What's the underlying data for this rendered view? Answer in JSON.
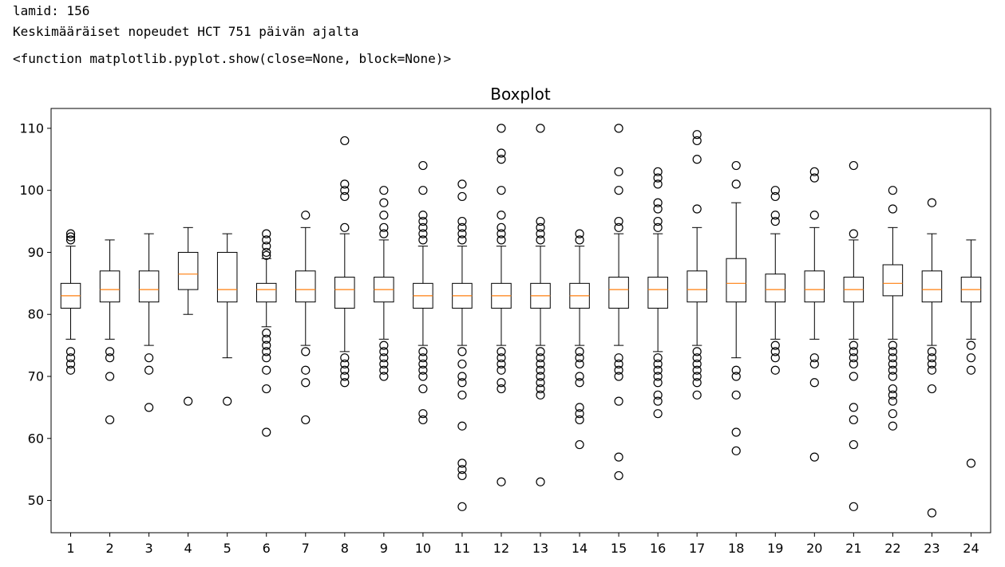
{
  "output_lines": [
    "lamid: 156",
    "Keskimääräiset nopeudet HCT 751 päivän ajalta",
    "<function matplotlib.pyplot.show(close=None, block=None)>"
  ],
  "chart_data": {
    "type": "boxplot",
    "title": "Boxplot",
    "xlabel": "",
    "ylabel": "",
    "categories": [
      "1",
      "2",
      "3",
      "4",
      "5",
      "6",
      "7",
      "8",
      "9",
      "10",
      "11",
      "12",
      "13",
      "14",
      "15",
      "16",
      "17",
      "18",
      "19",
      "20",
      "21",
      "22",
      "23",
      "24"
    ],
    "y_ticks": [
      50,
      60,
      70,
      80,
      90,
      100,
      110
    ],
    "ylim": [
      44.8,
      113.2
    ],
    "grid": false,
    "legend": "none",
    "colors": {
      "box": "#000000",
      "median": "#ff7f0e",
      "flier": "#000000",
      "background": "#ffffff"
    },
    "boxes": [
      {
        "q1": 81,
        "median": 83,
        "q3": 85,
        "whisker_low": 76,
        "whisker_high": 91,
        "outliers": [
          71,
          72,
          73,
          74,
          92,
          92.5,
          93
        ]
      },
      {
        "q1": 82,
        "median": 84,
        "q3": 87,
        "whisker_low": 76,
        "whisker_high": 92,
        "outliers": [
          63,
          70,
          73,
          74
        ]
      },
      {
        "q1": 82,
        "median": 84,
        "q3": 87,
        "whisker_low": 75,
        "whisker_high": 93,
        "outliers": [
          65,
          71,
          73
        ]
      },
      {
        "q1": 84,
        "median": 86.5,
        "q3": 90,
        "whisker_low": 80,
        "whisker_high": 94,
        "outliers": [
          66
        ]
      },
      {
        "q1": 82,
        "median": 84,
        "q3": 90,
        "whisker_low": 73,
        "whisker_high": 93,
        "outliers": [
          66
        ]
      },
      {
        "q1": 82,
        "median": 84,
        "q3": 85,
        "whisker_low": 78,
        "whisker_high": 89,
        "outliers": [
          61,
          68,
          71,
          73,
          74,
          75,
          76,
          77,
          89.5,
          90,
          91,
          92,
          93
        ]
      },
      {
        "q1": 82,
        "median": 84,
        "q3": 87,
        "whisker_low": 75,
        "whisker_high": 94,
        "outliers": [
          63,
          69,
          71,
          74,
          96
        ]
      },
      {
        "q1": 81,
        "median": 84,
        "q3": 86,
        "whisker_low": 74,
        "whisker_high": 93,
        "outliers": [
          69,
          70,
          71,
          72,
          73,
          94,
          99,
          100,
          101,
          108
        ]
      },
      {
        "q1": 82,
        "median": 84,
        "q3": 86,
        "whisker_low": 76,
        "whisker_high": 92,
        "outliers": [
          70,
          71,
          72,
          73,
          74,
          75,
          93,
          94,
          96,
          98,
          100
        ]
      },
      {
        "q1": 81,
        "median": 83,
        "q3": 85,
        "whisker_low": 75,
        "whisker_high": 91,
        "outliers": [
          63,
          64,
          68,
          70,
          71,
          72,
          73,
          74,
          92,
          93,
          94,
          95,
          96,
          100,
          104
        ]
      },
      {
        "q1": 81,
        "median": 83,
        "q3": 85,
        "whisker_low": 75,
        "whisker_high": 91,
        "outliers": [
          49,
          54,
          55,
          56,
          62,
          67,
          69,
          70,
          72,
          74,
          92,
          93,
          94,
          95,
          99,
          101
        ]
      },
      {
        "q1": 81,
        "median": 83,
        "q3": 85,
        "whisker_low": 75,
        "whisker_high": 91,
        "outliers": [
          53,
          68,
          69,
          71,
          72,
          73,
          74,
          92,
          93,
          94,
          96,
          100,
          105,
          106,
          110
        ]
      },
      {
        "q1": 81,
        "median": 83,
        "q3": 85,
        "whisker_low": 75,
        "whisker_high": 91,
        "outliers": [
          53,
          67,
          68,
          69,
          70,
          71,
          72,
          73,
          74,
          92,
          93,
          94,
          95,
          110
        ]
      },
      {
        "q1": 81,
        "median": 83,
        "q3": 85,
        "whisker_low": 75,
        "whisker_high": 91,
        "outliers": [
          59,
          63,
          64,
          65,
          69,
          70,
          72,
          73,
          74,
          92,
          93
        ]
      },
      {
        "q1": 81,
        "median": 84,
        "q3": 86,
        "whisker_low": 75,
        "whisker_high": 93,
        "outliers": [
          54,
          57,
          66,
          70,
          71,
          72,
          73,
          94,
          95,
          100,
          103,
          110
        ]
      },
      {
        "q1": 81,
        "median": 84,
        "q3": 86,
        "whisker_low": 74,
        "whisker_high": 93,
        "outliers": [
          64,
          66,
          67,
          69,
          70,
          71,
          72,
          73,
          94,
          95,
          97,
          98,
          101,
          102,
          103
        ]
      },
      {
        "q1": 82,
        "median": 84,
        "q3": 87,
        "whisker_low": 75,
        "whisker_high": 94,
        "outliers": [
          67,
          69,
          70,
          71,
          72,
          73,
          74,
          97,
          105,
          108,
          109
        ]
      },
      {
        "q1": 82,
        "median": 85,
        "q3": 89,
        "whisker_low": 73,
        "whisker_high": 98,
        "outliers": [
          58,
          61,
          67,
          70,
          71,
          101,
          104
        ]
      },
      {
        "q1": 82,
        "median": 84,
        "q3": 86.5,
        "whisker_low": 76,
        "whisker_high": 93,
        "outliers": [
          71,
          73,
          74,
          75,
          95,
          96,
          99,
          100
        ]
      },
      {
        "q1": 82,
        "median": 84,
        "q3": 87,
        "whisker_low": 76,
        "whisker_high": 94,
        "outliers": [
          57,
          69,
          72,
          73,
          96,
          102,
          103
        ]
      },
      {
        "q1": 82,
        "median": 84,
        "q3": 86,
        "whisker_low": 76,
        "whisker_high": 92,
        "outliers": [
          49,
          59,
          63,
          65,
          70,
          72,
          73,
          74,
          75,
          93,
          104
        ]
      },
      {
        "q1": 83,
        "median": 85,
        "q3": 88,
        "whisker_low": 76,
        "whisker_high": 94,
        "outliers": [
          62,
          64,
          66,
          67,
          68,
          70,
          71,
          72,
          73,
          74,
          75,
          97,
          100
        ]
      },
      {
        "q1": 82,
        "median": 84,
        "q3": 87,
        "whisker_low": 75,
        "whisker_high": 93,
        "outliers": [
          48,
          68,
          71,
          72,
          73,
          74,
          98
        ]
      },
      {
        "q1": 82,
        "median": 84,
        "q3": 86,
        "whisker_low": 76,
        "whisker_high": 92,
        "outliers": [
          56,
          71,
          73,
          75
        ]
      }
    ]
  }
}
